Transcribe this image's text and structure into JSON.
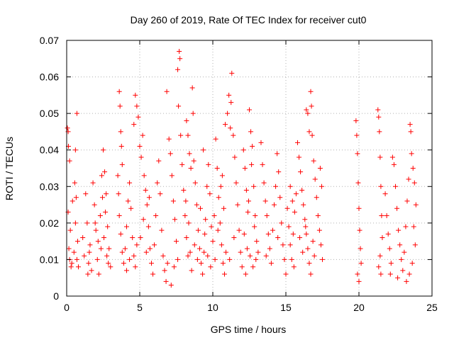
{
  "chart_data": {
    "type": "scatter",
    "title": "Day 260 of 2019, Rate Of TEC Index for receiver cut0",
    "xlabel": "GPS time / hours",
    "ylabel": "ROTI / TECUs",
    "xlim": [
      0,
      25
    ],
    "ylim": [
      0,
      0.07
    ],
    "x_ticks": [
      "0",
      "5",
      "10",
      "15",
      "20",
      "25"
    ],
    "y_ticks": [
      "0",
      "0.01",
      "0.02",
      "0.03",
      "0.04",
      "0.05",
      "0.06",
      "0.07"
    ],
    "grid": true,
    "marker": "+",
    "marker_color": "#ff0000",
    "series": [
      {
        "points": [
          [
            0.05,
            0.046
          ],
          [
            0.1,
            0.045
          ],
          [
            0.12,
            0.041
          ],
          [
            0.2,
            0.037
          ],
          [
            0.1,
            0.023
          ],
          [
            0.15,
            0.013
          ],
          [
            0.2,
            0.01
          ],
          [
            0.3,
            0.008
          ],
          [
            0.25,
            0.018
          ],
          [
            0.4,
            0.026
          ],
          [
            0.55,
            0.031
          ],
          [
            0.6,
            0.04
          ],
          [
            0.7,
            0.05
          ],
          [
            0.65,
            0.027
          ],
          [
            0.75,
            0.015
          ],
          [
            0.7,
            0.01
          ],
          [
            0.8,
            0.008
          ],
          [
            0.6,
            0.02
          ],
          [
            0.5,
            0.012
          ],
          [
            0.35,
            0.009
          ],
          [
            1.1,
            0.016
          ],
          [
            1.2,
            0.011
          ],
          [
            1.3,
            0.028
          ],
          [
            1.4,
            0.02
          ],
          [
            1.5,
            0.009
          ],
          [
            1.6,
            0.014
          ],
          [
            1.8,
            0.031
          ],
          [
            1.9,
            0.025
          ],
          [
            1.7,
            0.007
          ],
          [
            1.55,
            0.012
          ],
          [
            2.0,
            0.018
          ],
          [
            2.1,
            0.01
          ],
          [
            2.2,
            0.006
          ],
          [
            2.3,
            0.022
          ],
          [
            2.4,
            0.033
          ],
          [
            2.5,
            0.04
          ],
          [
            2.6,
            0.034
          ],
          [
            2.7,
            0.028
          ],
          [
            2.8,
            0.019
          ],
          [
            2.9,
            0.013
          ],
          [
            3.0,
            0.008
          ],
          [
            2.55,
            0.016
          ],
          [
            2.75,
            0.011
          ],
          [
            2.45,
            0.027
          ],
          [
            2.65,
            0.023
          ],
          [
            2.85,
            0.009
          ],
          [
            2.35,
            0.013
          ],
          [
            2.15,
            0.015
          ],
          [
            1.95,
            0.02
          ],
          [
            1.45,
            0.006
          ],
          [
            3.6,
            0.056
          ],
          [
            3.65,
            0.052
          ],
          [
            3.7,
            0.045
          ],
          [
            3.75,
            0.041
          ],
          [
            3.8,
            0.036
          ],
          [
            3.5,
            0.033
          ],
          [
            3.55,
            0.028
          ],
          [
            3.6,
            0.022
          ],
          [
            3.7,
            0.017
          ],
          [
            3.8,
            0.012
          ],
          [
            3.9,
            0.009
          ],
          [
            4.0,
            0.013
          ],
          [
            4.1,
            0.019
          ],
          [
            4.2,
            0.026
          ],
          [
            4.3,
            0.031
          ],
          [
            4.4,
            0.024
          ],
          [
            4.5,
            0.016
          ],
          [
            4.6,
            0.011
          ],
          [
            4.7,
            0.008
          ],
          [
            4.8,
            0.014
          ],
          [
            4.6,
            0.047
          ],
          [
            4.7,
            0.055
          ],
          [
            4.8,
            0.052
          ],
          [
            4.9,
            0.049
          ],
          [
            5.0,
            0.041
          ],
          [
            5.1,
            0.038
          ],
          [
            5.2,
            0.044
          ],
          [
            5.3,
            0.033
          ],
          [
            5.4,
            0.029
          ],
          [
            5.5,
            0.025
          ],
          [
            5.6,
            0.019
          ],
          [
            5.7,
            0.013
          ],
          [
            5.8,
            0.009
          ],
          [
            5.9,
            0.006
          ],
          [
            4.3,
            0.01
          ],
          [
            4.1,
            0.007
          ],
          [
            5.05,
            0.016
          ],
          [
            5.25,
            0.021
          ],
          [
            5.45,
            0.012
          ],
          [
            5.65,
            0.027
          ],
          [
            6.0,
            0.014
          ],
          [
            6.1,
            0.022
          ],
          [
            6.2,
            0.031
          ],
          [
            6.3,
            0.037
          ],
          [
            6.4,
            0.028
          ],
          [
            6.5,
            0.018
          ],
          [
            6.6,
            0.011
          ],
          [
            6.7,
            0.007
          ],
          [
            6.8,
            0.004
          ],
          [
            6.9,
            0.009
          ],
          [
            6.85,
            0.056
          ],
          [
            7.0,
            0.043
          ],
          [
            7.1,
            0.039
          ],
          [
            7.2,
            0.033
          ],
          [
            7.3,
            0.026
          ],
          [
            7.4,
            0.021
          ],
          [
            7.5,
            0.015
          ],
          [
            7.6,
            0.01
          ],
          [
            7.15,
            0.003
          ],
          [
            7.35,
            0.008
          ],
          [
            7.6,
            0.062
          ],
          [
            7.7,
            0.067
          ],
          [
            7.75,
            0.065
          ],
          [
            7.65,
            0.052
          ],
          [
            7.8,
            0.044
          ],
          [
            7.9,
            0.036
          ],
          [
            8.0,
            0.029
          ],
          [
            8.1,
            0.022
          ],
          [
            8.2,
            0.016
          ],
          [
            8.3,
            0.011
          ],
          [
            8.2,
            0.048
          ],
          [
            8.3,
            0.044
          ],
          [
            8.4,
            0.039
          ],
          [
            8.5,
            0.035
          ],
          [
            8.6,
            0.057
          ],
          [
            8.65,
            0.05
          ],
          [
            8.7,
            0.037
          ],
          [
            8.8,
            0.031
          ],
          [
            8.9,
            0.025
          ],
          [
            9.0,
            0.018
          ],
          [
            9.1,
            0.013
          ],
          [
            9.2,
            0.009
          ],
          [
            9.3,
            0.006
          ],
          [
            9.4,
            0.012
          ],
          [
            9.5,
            0.021
          ],
          [
            9.6,
            0.03
          ],
          [
            9.7,
            0.036
          ],
          [
            9.8,
            0.028
          ],
          [
            9.9,
            0.019
          ],
          [
            9.35,
            0.04
          ],
          [
            8.45,
            0.012
          ],
          [
            8.55,
            0.007
          ],
          [
            8.75,
            0.014
          ],
          [
            8.95,
            0.01
          ],
          [
            9.15,
            0.024
          ],
          [
            9.45,
            0.017
          ],
          [
            9.65,
            0.011
          ],
          [
            9.85,
            0.008
          ],
          [
            8.35,
            0.02
          ],
          [
            8.15,
            0.026
          ],
          [
            10.0,
            0.015
          ],
          [
            10.1,
            0.022
          ],
          [
            10.2,
            0.043
          ],
          [
            10.3,
            0.035
          ],
          [
            10.4,
            0.027
          ],
          [
            10.5,
            0.02
          ],
          [
            10.6,
            0.014
          ],
          [
            10.7,
            0.009
          ],
          [
            10.8,
            0.006
          ],
          [
            10.9,
            0.012
          ],
          [
            10.85,
            0.047
          ],
          [
            11.0,
            0.05
          ],
          [
            11.1,
            0.055
          ],
          [
            11.2,
            0.046
          ],
          [
            11.3,
            0.061
          ],
          [
            11.25,
            0.053
          ],
          [
            11.4,
            0.044
          ],
          [
            11.5,
            0.038
          ],
          [
            11.6,
            0.031
          ],
          [
            11.7,
            0.025
          ],
          [
            11.8,
            0.018
          ],
          [
            11.9,
            0.012
          ],
          [
            12.0,
            0.008
          ],
          [
            11.45,
            0.016
          ],
          [
            11.15,
            0.01
          ],
          [
            10.75,
            0.024
          ],
          [
            10.55,
            0.03
          ],
          [
            10.35,
            0.018
          ],
          [
            10.15,
            0.01
          ],
          [
            10.65,
            0.033
          ],
          [
            12.1,
            0.04
          ],
          [
            12.2,
            0.035
          ],
          [
            12.3,
            0.029
          ],
          [
            12.4,
            0.023
          ],
          [
            12.5,
            0.051
          ],
          [
            12.6,
            0.045
          ],
          [
            12.7,
            0.041
          ],
          [
            12.8,
            0.03
          ],
          [
            12.9,
            0.022
          ],
          [
            13.0,
            0.015
          ],
          [
            12.55,
            0.011
          ],
          [
            12.75,
            0.008
          ],
          [
            12.35,
            0.013
          ],
          [
            12.15,
            0.017
          ],
          [
            12.95,
            0.01
          ],
          [
            12.45,
            0.026
          ],
          [
            12.65,
            0.036
          ],
          [
            12.85,
            0.019
          ],
          [
            12.25,
            0.006
          ],
          [
            13.1,
            0.012
          ],
          [
            13.3,
            0.042
          ],
          [
            13.4,
            0.036
          ],
          [
            13.5,
            0.031
          ],
          [
            13.6,
            0.026
          ],
          [
            13.7,
            0.022
          ],
          [
            13.8,
            0.017
          ],
          [
            13.9,
            0.013
          ],
          [
            14.0,
            0.009
          ],
          [
            14.1,
            0.018
          ],
          [
            14.2,
            0.025
          ],
          [
            14.3,
            0.03
          ],
          [
            14.4,
            0.039
          ],
          [
            14.5,
            0.034
          ],
          [
            14.6,
            0.027
          ],
          [
            14.7,
            0.02
          ],
          [
            14.8,
            0.014
          ],
          [
            14.9,
            0.01
          ],
          [
            15.0,
            0.006
          ],
          [
            13.65,
            0.011
          ],
          [
            14.45,
            0.016
          ],
          [
            15.1,
            0.024
          ],
          [
            15.2,
            0.019
          ],
          [
            15.3,
            0.014
          ],
          [
            15.4,
            0.01
          ],
          [
            15.5,
            0.017
          ],
          [
            15.6,
            0.023
          ],
          [
            15.7,
            0.028
          ],
          [
            15.3,
            0.03
          ],
          [
            15.45,
            0.026
          ],
          [
            15.55,
            0.008
          ],
          [
            15.8,
            0.042
          ],
          [
            15.9,
            0.038
          ],
          [
            16.0,
            0.034
          ],
          [
            16.1,
            0.029
          ],
          [
            16.2,
            0.025
          ],
          [
            16.3,
            0.021
          ],
          [
            16.4,
            0.017
          ],
          [
            16.5,
            0.013
          ],
          [
            16.6,
            0.009
          ],
          [
            16.7,
            0.006
          ],
          [
            16.4,
            0.051
          ],
          [
            16.5,
            0.05
          ],
          [
            16.6,
            0.045
          ],
          [
            16.7,
            0.056
          ],
          [
            16.75,
            0.052
          ],
          [
            16.8,
            0.044
          ],
          [
            16.9,
            0.037
          ],
          [
            17.0,
            0.032
          ],
          [
            17.1,
            0.027
          ],
          [
            17.2,
            0.022
          ],
          [
            17.3,
            0.018
          ],
          [
            17.4,
            0.014
          ],
          [
            17.5,
            0.01
          ],
          [
            17.45,
            0.03
          ],
          [
            17.35,
            0.035
          ],
          [
            16.85,
            0.015
          ],
          [
            16.95,
            0.011
          ],
          [
            16.15,
            0.012
          ],
          [
            15.95,
            0.016
          ],
          [
            16.35,
            0.019
          ],
          [
            19.8,
            0.048
          ],
          [
            19.85,
            0.044
          ],
          [
            19.9,
            0.039
          ],
          [
            19.95,
            0.031
          ],
          [
            20.0,
            0.024
          ],
          [
            20.05,
            0.018
          ],
          [
            20.1,
            0.013
          ],
          [
            20.15,
            0.009
          ],
          [
            19.9,
            0.006
          ],
          [
            20.0,
            0.004
          ],
          [
            21.3,
            0.051
          ],
          [
            21.35,
            0.049
          ],
          [
            21.4,
            0.045
          ],
          [
            21.45,
            0.038
          ],
          [
            21.5,
            0.03
          ],
          [
            21.55,
            0.022
          ],
          [
            21.6,
            0.016
          ],
          [
            21.45,
            0.011
          ],
          [
            21.35,
            0.008
          ],
          [
            21.5,
            0.006
          ],
          [
            21.8,
            0.028
          ],
          [
            21.9,
            0.022
          ],
          [
            22.0,
            0.017
          ],
          [
            22.1,
            0.013
          ],
          [
            22.2,
            0.009
          ],
          [
            22.3,
            0.038
          ],
          [
            22.4,
            0.036
          ],
          [
            22.5,
            0.03
          ],
          [
            22.6,
            0.024
          ],
          [
            22.7,
            0.018
          ],
          [
            22.8,
            0.014
          ],
          [
            22.9,
            0.01
          ],
          [
            23.0,
            0.007
          ],
          [
            23.1,
            0.012
          ],
          [
            23.2,
            0.019
          ],
          [
            23.3,
            0.026
          ],
          [
            23.4,
            0.032
          ],
          [
            23.5,
            0.047
          ],
          [
            23.55,
            0.045
          ],
          [
            23.6,
            0.039
          ],
          [
            23.7,
            0.035
          ],
          [
            23.8,
            0.031
          ],
          [
            23.9,
            0.025
          ],
          [
            23.75,
            0.019
          ],
          [
            23.85,
            0.014
          ],
          [
            23.65,
            0.009
          ],
          [
            23.45,
            0.006
          ],
          [
            23.25,
            0.004
          ],
          [
            22.65,
            0.005
          ],
          [
            22.15,
            0.006
          ]
        ]
      }
    ]
  }
}
